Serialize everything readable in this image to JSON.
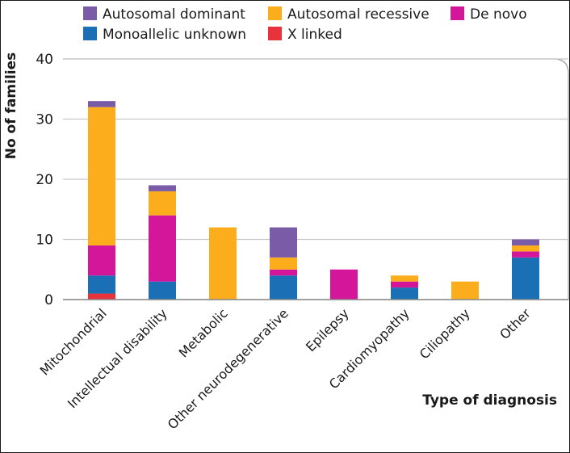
{
  "chart_data": {
    "type": "bar",
    "stacked": true,
    "xlabel": "Type of diagnosis",
    "ylabel": "No of families",
    "ylim": [
      0,
      40
    ],
    "yticks": [
      0,
      10,
      20,
      30,
      40
    ],
    "grid": true,
    "legend_position": "top",
    "categories": [
      "Mitochondrial",
      "Intellectual disability",
      "Metabolic",
      "Other neurodegenerative",
      "Epilepsy",
      "Cardiomyopathy",
      "Ciliopathy",
      "Other"
    ],
    "series": [
      {
        "name": "X linked",
        "color": "#e8323c",
        "values": [
          1,
          0,
          0,
          0,
          0,
          0,
          0,
          0
        ]
      },
      {
        "name": "Monoallelic unknown",
        "color": "#1a6fb5",
        "values": [
          3,
          3,
          0,
          4,
          0,
          2,
          0,
          7
        ]
      },
      {
        "name": "De novo",
        "color": "#d4169b",
        "values": [
          5,
          11,
          0,
          1,
          5,
          1,
          0,
          1
        ]
      },
      {
        "name": "Autosomal recessive",
        "color": "#fbad1c",
        "values": [
          23,
          4,
          12,
          2,
          0,
          1,
          3,
          1
        ]
      },
      {
        "name": "Autosomal dominant",
        "color": "#7a5ba8",
        "values": [
          1,
          1,
          0,
          5,
          0,
          0,
          0,
          1
        ]
      }
    ],
    "legend_order": [
      "Autosomal dominant",
      "Autosomal recessive",
      "De novo",
      "Monoallelic unknown",
      "X linked"
    ]
  }
}
